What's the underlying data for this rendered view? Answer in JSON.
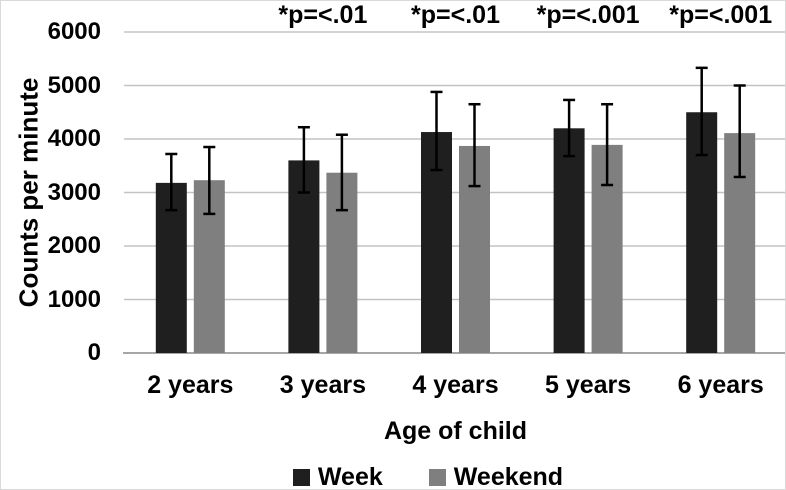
{
  "chart_data": {
    "type": "bar",
    "title": "",
    "xlabel": "Age of child",
    "ylabel": "Counts per minute",
    "categories": [
      "2 years",
      "3 years",
      "4 years",
      "5 years",
      "6 years"
    ],
    "series": [
      {
        "name": "Week",
        "color": "#1f1f1f",
        "values": [
          3180,
          3600,
          4130,
          4200,
          4500
        ],
        "error_low": [
          2670,
          3000,
          3420,
          3680,
          3700
        ],
        "error_high": [
          3720,
          4220,
          4880,
          4730,
          5330
        ]
      },
      {
        "name": "Weekend",
        "color": "#7f7f7f",
        "values": [
          3230,
          3370,
          3870,
          3890,
          4110
        ],
        "error_low": [
          2600,
          2670,
          3120,
          3140,
          3290
        ],
        "error_high": [
          3850,
          4080,
          4650,
          4650,
          5000
        ]
      }
    ],
    "annotations": [
      {
        "category_index": 1,
        "text": "*p=<.01"
      },
      {
        "category_index": 2,
        "text": "*p=<.01"
      },
      {
        "category_index": 3,
        "text": "*p=<.001"
      },
      {
        "category_index": 4,
        "text": "*p=<.001"
      }
    ],
    "ylim": [
      0,
      6000
    ],
    "ytick_step": 1000,
    "yticks": [
      "0",
      "1000",
      "2000",
      "3000",
      "4000",
      "5000",
      "6000"
    ],
    "grid": true,
    "legend_position": "bottom",
    "colors": {
      "gridline": "#c3c3c3",
      "baseline": "#a6a6a6",
      "errorbar": "#000000",
      "text": "#000000",
      "background": "#ffffff"
    }
  }
}
